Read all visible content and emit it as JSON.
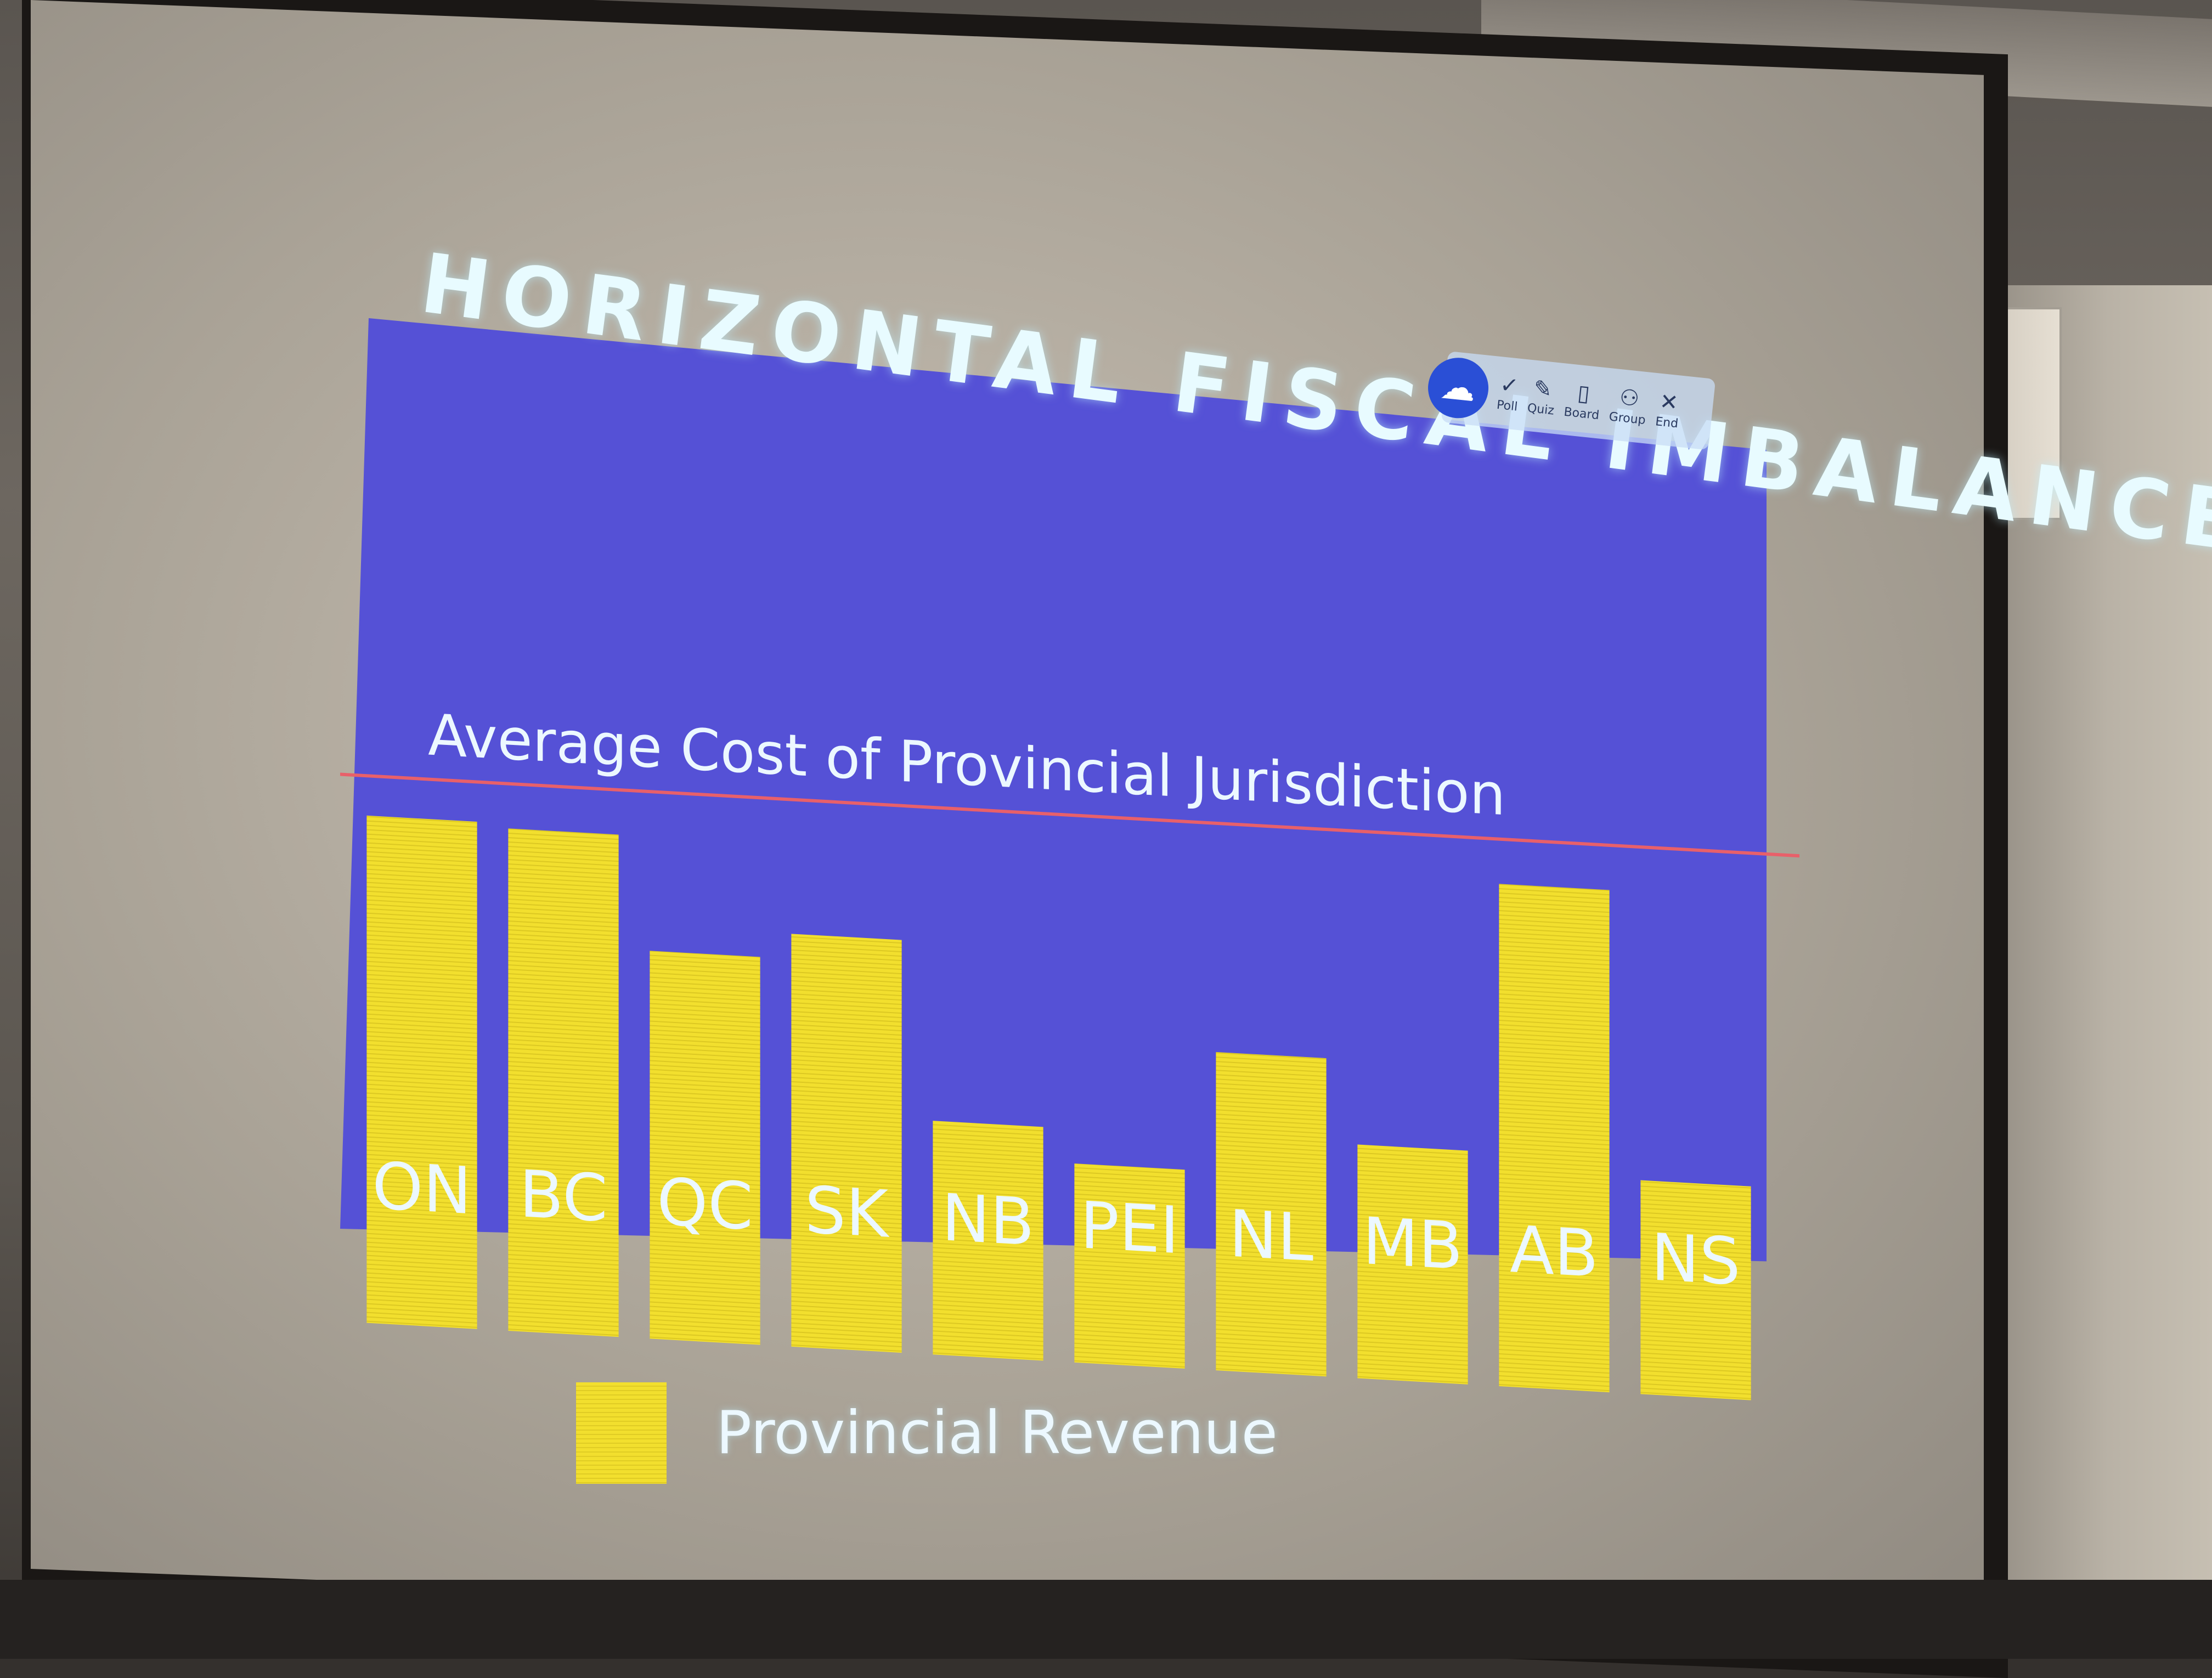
{
  "slide": {
    "title": "HORIZONTAL FISCAL IMBALANCE"
  },
  "toolbar": {
    "items": [
      {
        "label": "Poll",
        "icon": "check-circle-icon"
      },
      {
        "label": "Quiz",
        "icon": "edit-icon"
      },
      {
        "label": "Board",
        "icon": "clipboard-icon"
      },
      {
        "label": "Group",
        "icon": "group-icon"
      },
      {
        "label": "End",
        "icon": "close-icon"
      }
    ]
  },
  "chart_data": {
    "type": "bar",
    "title": "",
    "categories": [
      "ON",
      "BC",
      "QC",
      "SK",
      "NB",
      "PEI",
      "NL",
      "MB",
      "AB",
      "NS"
    ],
    "series": [
      {
        "name": "Provincial Revenue",
        "values": [
          102,
          101,
          78,
          83,
          47,
          40,
          64,
          47,
          101,
          43
        ]
      }
    ],
    "reference_line": {
      "label": "Average Cost of Provincial Jurisdiction",
      "value": 110
    },
    "ylim": [
      0,
      150
    ],
    "grid": false,
    "legend": "bottom-left",
    "colors": {
      "background": "#5551d6",
      "bar": "#f2df2e",
      "reference_line": "#e8606a",
      "label_text": "#ecf8ff"
    }
  }
}
